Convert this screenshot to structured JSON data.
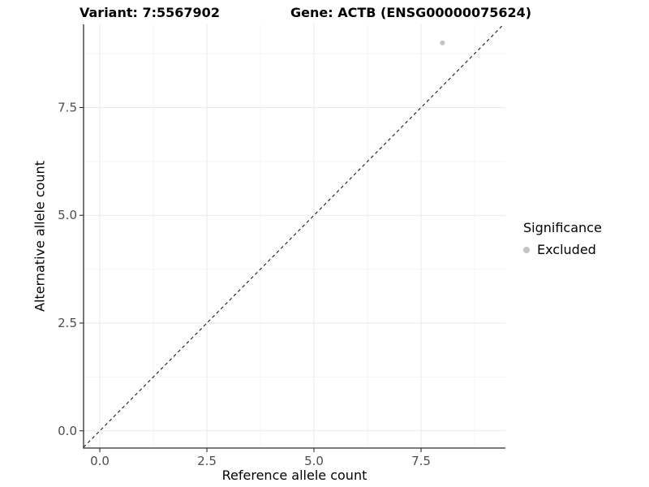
{
  "chart_data": {
    "type": "scatter",
    "title_left": "Variant: 7:5567902",
    "title_right": "Gene: ACTB (ENSG00000075624)",
    "xlabel": "Reference allele count",
    "ylabel": "Alternative allele count",
    "xlim": [
      -0.38,
      9.47
    ],
    "ylim": [
      -0.4,
      9.43
    ],
    "x_ticks": [
      {
        "v": 0,
        "label": "0.0"
      },
      {
        "v": 2.5,
        "label": "2.5"
      },
      {
        "v": 5,
        "label": "5.0"
      },
      {
        "v": 7.5,
        "label": "7.5"
      }
    ],
    "y_ticks": [
      {
        "v": 0,
        "label": "0.0"
      },
      {
        "v": 2.5,
        "label": "2.5"
      },
      {
        "v": 5,
        "label": "5.0"
      },
      {
        "v": 7.5,
        "label": "7.5"
      }
    ],
    "x_minor_ticks": [
      1.25,
      3.75,
      6.25,
      8.75
    ],
    "y_minor_ticks": [
      1.25,
      3.75,
      6.25,
      8.75
    ],
    "grid": true,
    "series": [
      {
        "name": "Excluded",
        "color": "#c3c3c3",
        "points": [
          {
            "x": 8,
            "y": 9
          }
        ]
      }
    ],
    "reference_line": {
      "type": "identity",
      "slope": 1,
      "intercept": 0,
      "style": "dashed",
      "color": "#1a1a1a"
    },
    "legend": {
      "title": "Significance",
      "position": "right",
      "items": [
        {
          "label": "Excluded",
          "color": "#c3c3c3"
        }
      ]
    },
    "colors": {
      "grid_major": "#e9e9e9",
      "grid_minor": "#f4f4f4",
      "axis": "#2e2e2e",
      "tick_label": "#4d4d4d",
      "axis_title": "#000000",
      "background": "#ffffff"
    }
  }
}
